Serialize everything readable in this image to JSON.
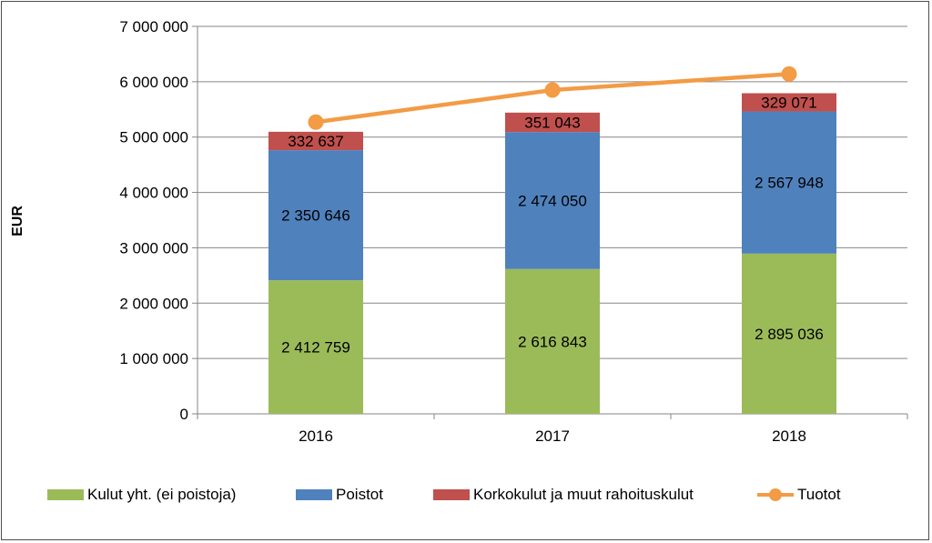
{
  "chart_data": {
    "type": "bar",
    "stacked": true,
    "categories": [
      "2016",
      "2017",
      "2018"
    ],
    "ylabel": "EUR",
    "ylim": [
      0,
      7000000
    ],
    "yticks": [
      0,
      1000000,
      2000000,
      3000000,
      4000000,
      5000000,
      6000000,
      7000000
    ],
    "ytick_labels": [
      "0",
      "1 000 000",
      "2 000 000",
      "3 000 000",
      "4 000 000",
      "5 000 000",
      "6 000 000",
      "7 000 000"
    ],
    "grid": true,
    "legend_position": "bottom",
    "series": [
      {
        "name": "Kulut yht. (ei poistoja)",
        "kind": "bar",
        "color": "#9bbb59",
        "values": [
          2412759,
          2616843,
          2895036
        ],
        "labels": [
          "2 412 759",
          "2 616 843",
          "2 895 036"
        ]
      },
      {
        "name": "Poistot",
        "kind": "bar",
        "color": "#4f81bd",
        "values": [
          2350646,
          2474050,
          2567948
        ],
        "labels": [
          "2 350 646",
          "2 474 050",
          "2 567 948"
        ]
      },
      {
        "name": "Korkokulut ja muut rahoituskulut",
        "kind": "bar",
        "color": "#c0504d",
        "values": [
          332637,
          351043,
          329071
        ],
        "labels": [
          "332 637",
          "351 043",
          "329 071"
        ]
      },
      {
        "name": "Tuotot",
        "kind": "line",
        "color": "#f39b45",
        "values": [
          5270000,
          5850000,
          6140000
        ]
      }
    ]
  }
}
